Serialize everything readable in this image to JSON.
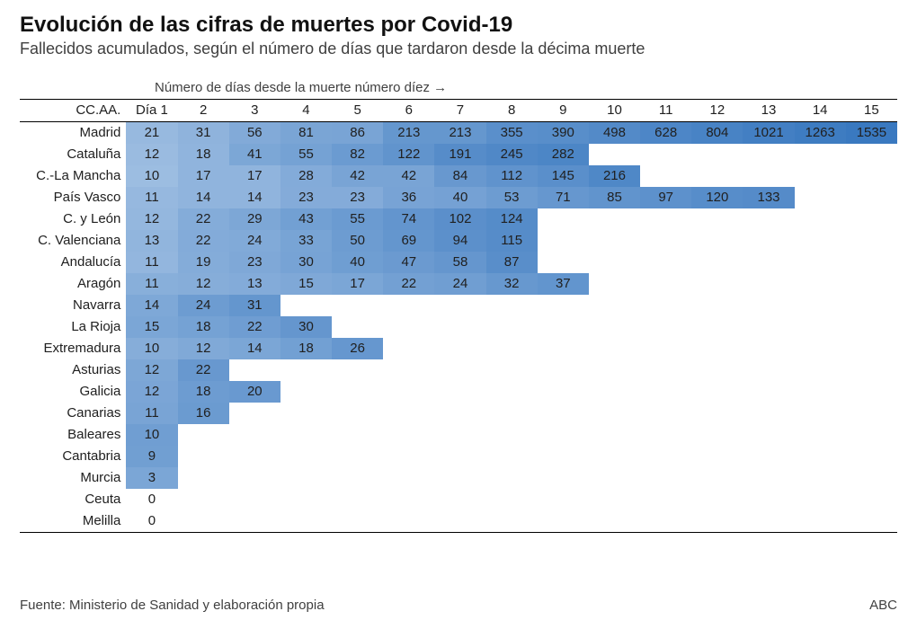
{
  "title": "Evolución de las cifras de muertes por Covid-19",
  "subtitle": "Fallecidos acumulados, según el número de días que tardaron desde la décima muerte",
  "axis_note": "Número de días desde la muerte número díez →",
  "corner_label": "CC.AA.",
  "day_labels": [
    "Día 1",
    "2",
    "3",
    "4",
    "5",
    "6",
    "7",
    "8",
    "9",
    "10",
    "11",
    "12",
    "13",
    "14",
    "15"
  ],
  "footer_left": "Fuente: Ministerio de Sanidad y elaboración propia",
  "footer_right": "ABC",
  "heatmap": {
    "type": "heatmap",
    "color_scale": {
      "min_color": "#f0f6fd",
      "max_color": "#3a79c0",
      "empty_color": "#ffffff"
    },
    "text_color": "#1a1a1a",
    "font_size_pt": 11,
    "row_header_align": "right",
    "cell_align": "center"
  },
  "rows": [
    {
      "name": "Madrid",
      "values": [
        21,
        31,
        56,
        81,
        86,
        213,
        213,
        355,
        390,
        498,
        628,
        804,
        1021,
        1263,
        1535
      ]
    },
    {
      "name": "Cataluña",
      "values": [
        12,
        18,
        41,
        55,
        82,
        122,
        191,
        245,
        282
      ]
    },
    {
      "name": "C.-La Mancha",
      "values": [
        10,
        17,
        17,
        28,
        42,
        42,
        84,
        112,
        145,
        216
      ]
    },
    {
      "name": "País Vasco",
      "values": [
        11,
        14,
        14,
        23,
        23,
        36,
        40,
        53,
        71,
        85,
        97,
        120,
        133
      ]
    },
    {
      "name": "C. y León",
      "values": [
        12,
        22,
        29,
        43,
        55,
        74,
        102,
        124
      ]
    },
    {
      "name": "C. Valenciana",
      "values": [
        13,
        22,
        24,
        33,
        50,
        69,
        94,
        115
      ]
    },
    {
      "name": "Andalucía",
      "values": [
        11,
        19,
        23,
        30,
        40,
        47,
        58,
        87
      ]
    },
    {
      "name": "Aragón",
      "values": [
        11,
        12,
        13,
        15,
        17,
        22,
        24,
        32,
        37
      ]
    },
    {
      "name": "Navarra",
      "values": [
        14,
        24,
        31
      ]
    },
    {
      "name": "La Rioja",
      "values": [
        15,
        18,
        22,
        30
      ]
    },
    {
      "name": "Extremadura",
      "values": [
        10,
        12,
        14,
        18,
        26
      ]
    },
    {
      "name": "Asturias",
      "values": [
        12,
        22
      ]
    },
    {
      "name": "Galicia",
      "values": [
        12,
        18,
        20
      ]
    },
    {
      "name": "Canarias",
      "values": [
        11,
        16
      ]
    },
    {
      "name": "Baleares",
      "values": [
        10
      ]
    },
    {
      "name": "Cantabria",
      "values": [
        9
      ]
    },
    {
      "name": "Murcia",
      "values": [
        3
      ]
    },
    {
      "name": "Ceuta",
      "values": [
        0
      ]
    },
    {
      "name": "Melilla",
      "values": [
        0
      ]
    }
  ]
}
